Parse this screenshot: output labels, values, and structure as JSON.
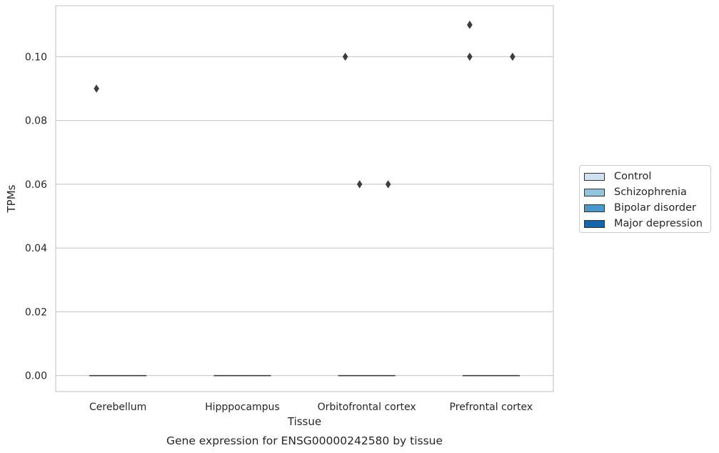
{
  "chart_data": {
    "type": "box",
    "title": "",
    "caption": "Gene expression for ENSG00000242580 by tissue",
    "xlabel": "Tissue",
    "ylabel": "TPMs",
    "ylim": [
      -0.005,
      0.116
    ],
    "yticks": [
      0.0,
      0.02,
      0.04,
      0.06,
      0.08,
      0.1
    ],
    "ytick_labels": [
      "0.00",
      "0.02",
      "0.04",
      "0.06",
      "0.08",
      "0.10"
    ],
    "grid": true,
    "legend_position": "right, outside",
    "categories": [
      "Cerebellum",
      "Hipppocampus",
      "Orbitofrontal cortex",
      "Prefrontal cortex"
    ],
    "series": [
      {
        "name": "Control",
        "color": "#d0e1f2",
        "medians": [
          0.0,
          0.0,
          0.0,
          0.0
        ],
        "outliers": [
          [
            0.09
          ],
          [],
          [
            0.1
          ],
          [
            0.11,
            0.11,
            0.1
          ]
        ]
      },
      {
        "name": "Schizophrenia",
        "color": "#93c4de",
        "medians": [
          0.0,
          0.0,
          0.0,
          0.0
        ],
        "outliers": [
          [],
          [],
          [
            0.06
          ],
          []
        ]
      },
      {
        "name": "Bipolar disorder",
        "color": "#4a98c9",
        "medians": [
          0.0,
          0.0,
          0.0,
          0.0
        ],
        "outliers": [
          [],
          [],
          [],
          []
        ]
      },
      {
        "name": "Major depression",
        "color": "#1764ab",
        "medians": [
          0.0,
          0.0,
          0.0,
          0.0
        ],
        "outliers": [
          [],
          [],
          [
            0.06
          ],
          [
            0.1
          ]
        ]
      }
    ]
  }
}
